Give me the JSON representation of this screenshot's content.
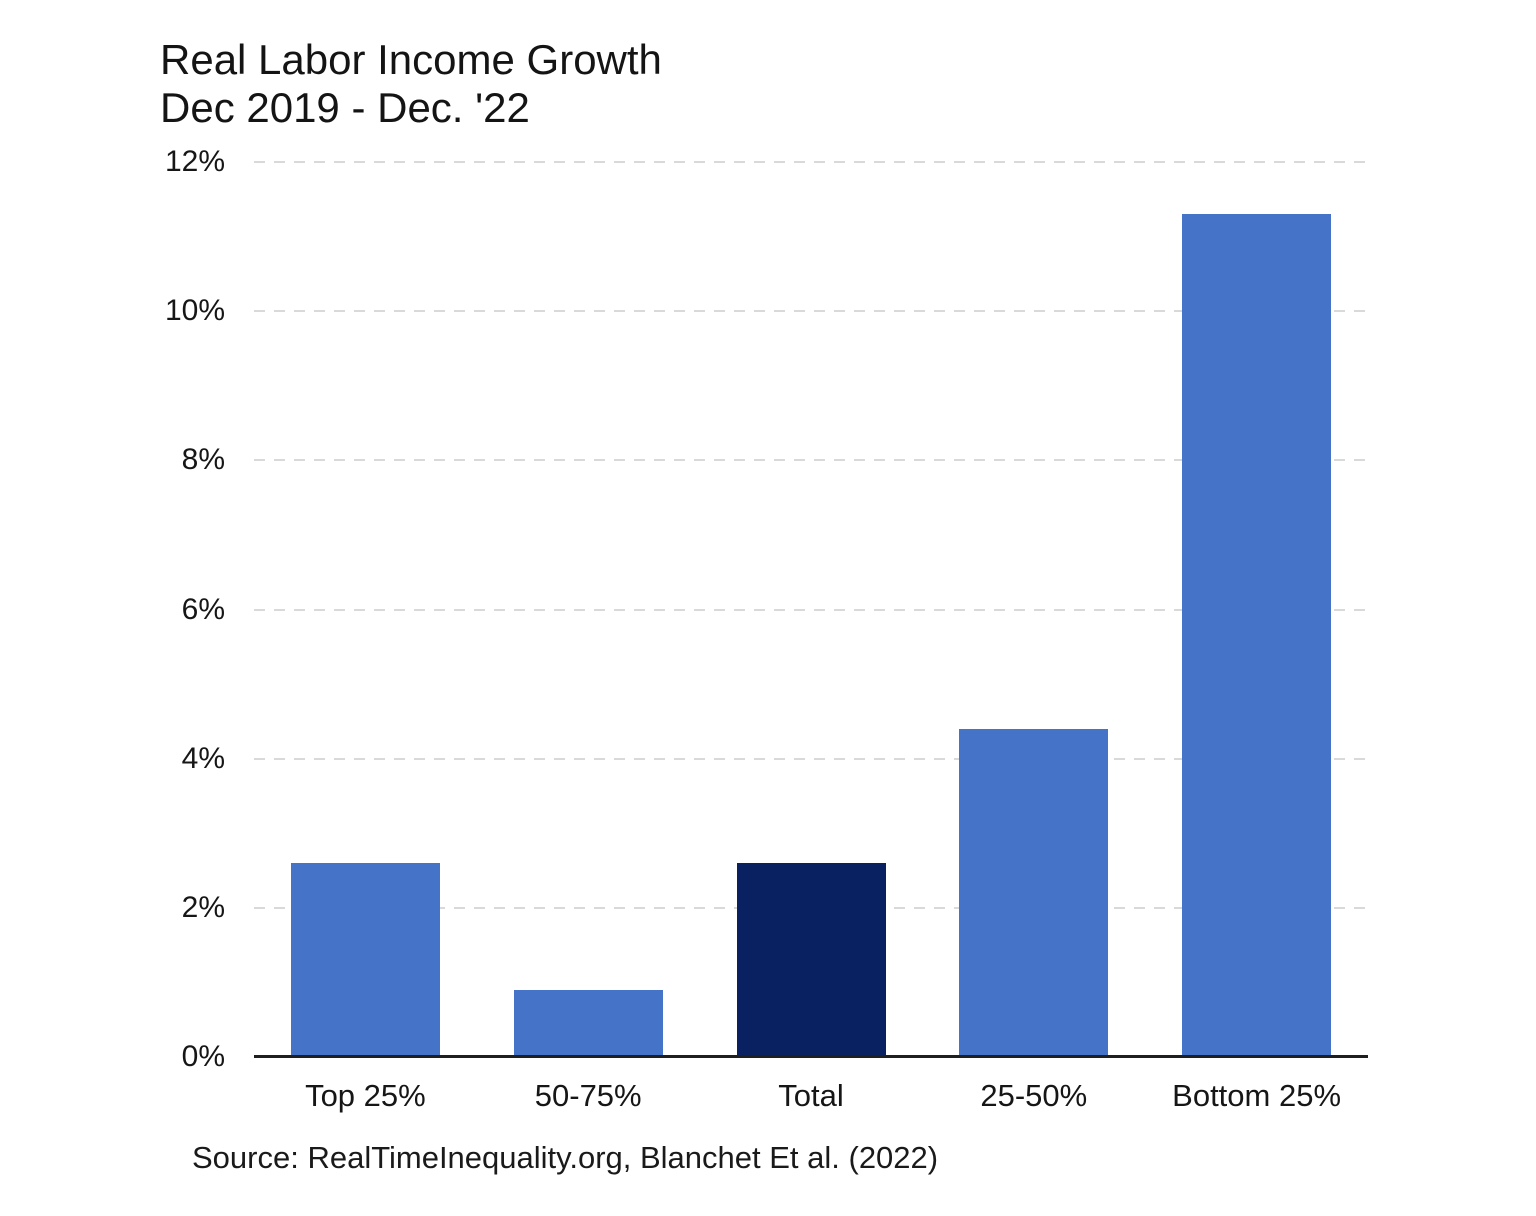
{
  "page": {
    "background": "#ffffff"
  },
  "chart_data": {
    "type": "bar",
    "title": "Real Labor Income Growth",
    "subtitle": "Dec 2019 - Dec. '22",
    "categories": [
      "Top 25%",
      "50-75%",
      "Total",
      "25-50%",
      "Bottom 25%"
    ],
    "values": [
      2.6,
      0.9,
      2.6,
      4.4,
      11.3
    ],
    "unit": "%",
    "bar_colors": [
      "#4573c8",
      "#4573c8",
      "#0a2161",
      "#4573c8",
      "#4573c8"
    ],
    "highlight_category": "Total",
    "xlabel": "",
    "ylabel": "",
    "ylim": [
      0,
      12
    ],
    "yticks": [
      0,
      2,
      4,
      6,
      8,
      10,
      12
    ],
    "ytick_labels": [
      "0%",
      "2%",
      "4%",
      "6%",
      "8%",
      "10%",
      "12%"
    ],
    "grid": "horizontal-dashed",
    "legend": "none",
    "source": "Source: RealTimeInequality.org, Blanchet Et al. (2022)"
  },
  "colors": {
    "bar_blue": "#4573c8",
    "bar_navy": "#0a2161",
    "gridline": "#d9d9d9",
    "axis_line": "#1f1f1f",
    "text": "#161616"
  }
}
